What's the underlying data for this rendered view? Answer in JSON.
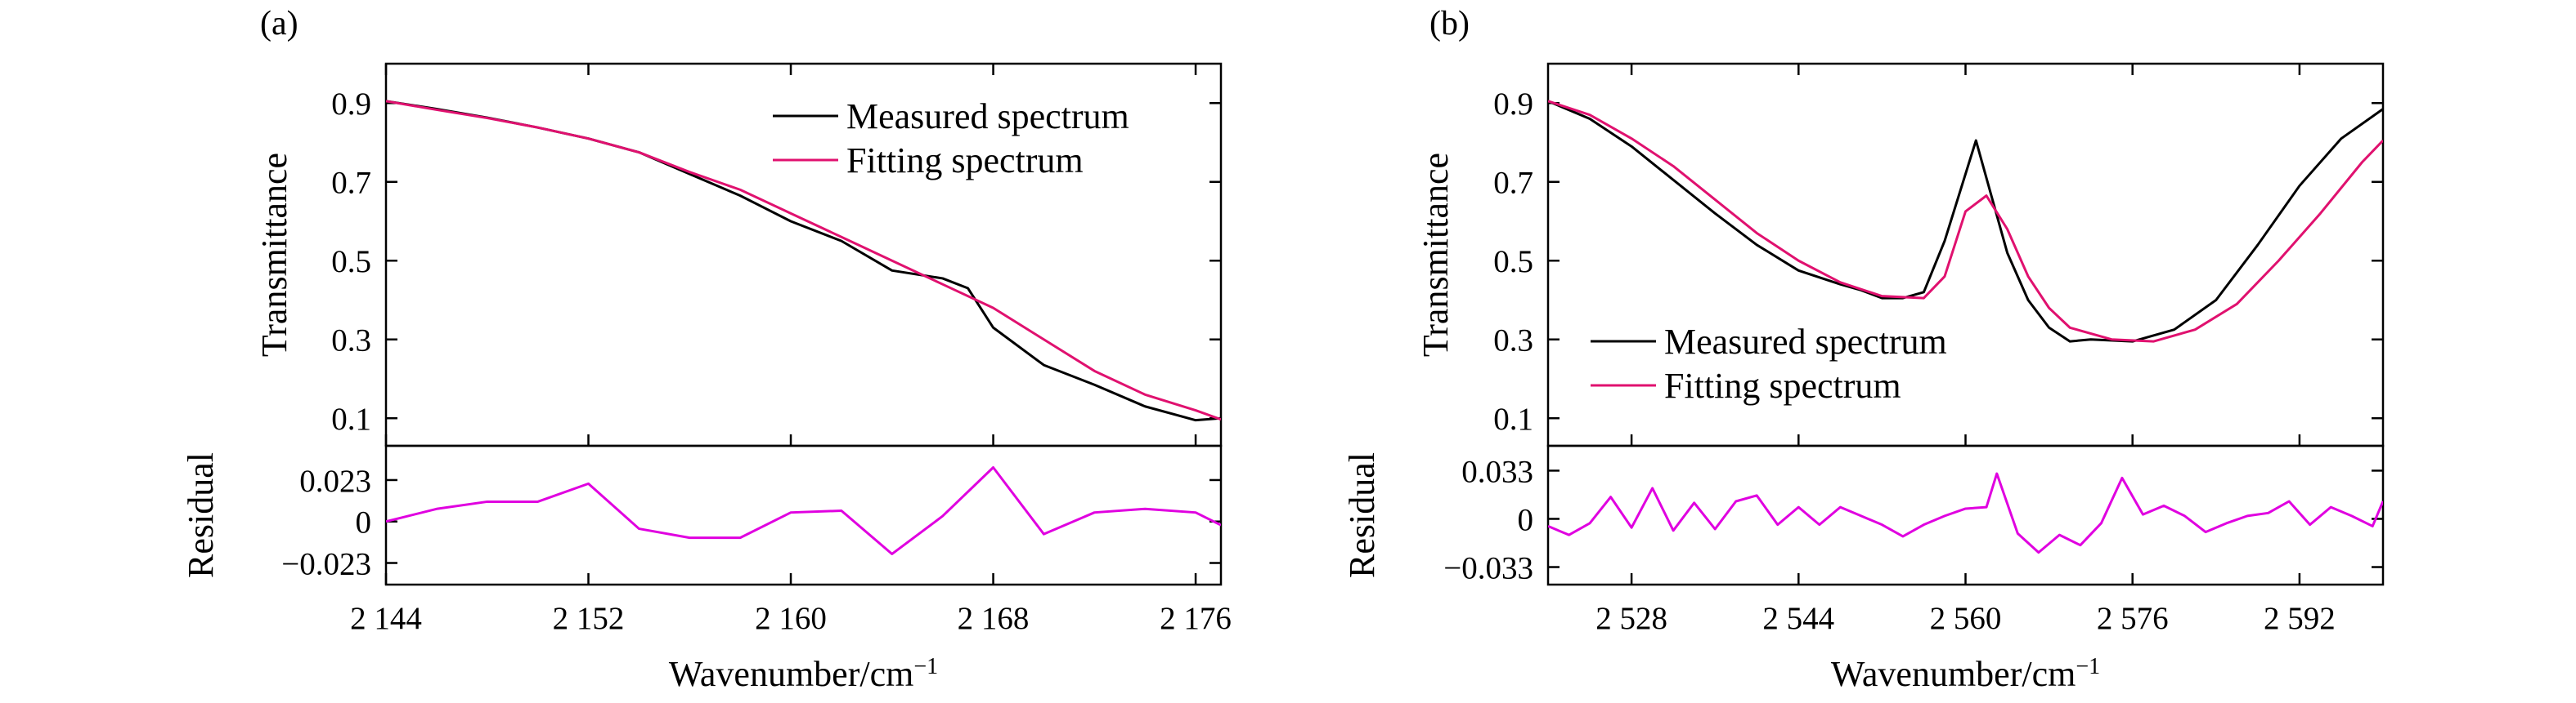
{
  "chart_data": [
    {
      "type": "line",
      "panel_label": "(a)",
      "xlabel": "Wavenumber/cm",
      "xlabel_sup": "−1",
      "xlim": [
        2144,
        2177
      ],
      "xticks": [
        2144,
        2152,
        2160,
        2168,
        2176
      ],
      "xtick_labels": [
        "2 144",
        "2 152",
        "2 160",
        "2 168",
        "2 176"
      ],
      "top": {
        "ylabel": "Transmittance",
        "ylim": [
          0.03,
          1.0
        ],
        "yticks": [
          0.1,
          0.3,
          0.5,
          0.7,
          0.9
        ],
        "ytick_labels": [
          "0.1",
          "0.3",
          "0.5",
          "0.7",
          "0.9"
        ],
        "legend_position": "top-right",
        "series": [
          {
            "name": "Measured spectrum",
            "color": "#000000",
            "points": [
              [
                2144,
                0.905
              ],
              [
                2146,
                0.885
              ],
              [
                2148,
                0.863
              ],
              [
                2150,
                0.838
              ],
              [
                2152,
                0.81
              ],
              [
                2154,
                0.775
              ],
              [
                2156,
                0.72
              ],
              [
                2158,
                0.665
              ],
              [
                2160,
                0.6
              ],
              [
                2162,
                0.55
              ],
              [
                2164,
                0.475
              ],
              [
                2166,
                0.455
              ],
              [
                2167,
                0.43
              ],
              [
                2168,
                0.33
              ],
              [
                2170,
                0.235
              ],
              [
                2172,
                0.185
              ],
              [
                2174,
                0.13
              ],
              [
                2176,
                0.095
              ],
              [
                2177,
                0.1
              ],
              [
                2177,
                0.097
              ]
            ]
          },
          {
            "name": "Fitting spectrum",
            "color": "#e0116f",
            "points": [
              [
                2144,
                0.905
              ],
              [
                2146,
                0.883
              ],
              [
                2148,
                0.862
              ],
              [
                2150,
                0.838
              ],
              [
                2152,
                0.81
              ],
              [
                2154,
                0.775
              ],
              [
                2156,
                0.725
              ],
              [
                2158,
                0.68
              ],
              [
                2160,
                0.62
              ],
              [
                2162,
                0.56
              ],
              [
                2164,
                0.5
              ],
              [
                2166,
                0.44
              ],
              [
                2168,
                0.38
              ],
              [
                2170,
                0.3
              ],
              [
                2172,
                0.22
              ],
              [
                2174,
                0.16
              ],
              [
                2176,
                0.12
              ],
              [
                2177,
                0.097
              ]
            ]
          }
        ]
      },
      "bottom": {
        "ylabel": "Residual",
        "ylim": [
          -0.035,
          0.042
        ],
        "yticks": [
          -0.023,
          0,
          0.023
        ],
        "ytick_labels": [
          "−0.023",
          "0",
          "0.023"
        ],
        "series": [
          {
            "name": "",
            "color": "#e000e0",
            "points": [
              [
                2144,
                0.0
              ],
              [
                2146,
                0.007
              ],
              [
                2148,
                0.011
              ],
              [
                2150,
                0.011
              ],
              [
                2152,
                0.021
              ],
              [
                2154,
                -0.004
              ],
              [
                2156,
                -0.009
              ],
              [
                2158,
                -0.009
              ],
              [
                2160,
                0.005
              ],
              [
                2162,
                0.006
              ],
              [
                2164,
                -0.018
              ],
              [
                2166,
                0.003
              ],
              [
                2168,
                0.03
              ],
              [
                2170,
                -0.007
              ],
              [
                2172,
                0.005
              ],
              [
                2174,
                0.007
              ],
              [
                2176,
                0.005
              ],
              [
                2177,
                -0.002
              ]
            ]
          }
        ]
      }
    },
    {
      "type": "line",
      "panel_label": "(b)",
      "xlabel": "Wavenumber/cm",
      "xlabel_sup": "−1",
      "xlim": [
        2520,
        2600
      ],
      "xticks": [
        2528,
        2544,
        2560,
        2576,
        2592
      ],
      "xtick_labels": [
        "2 528",
        "2 544",
        "2 560",
        "2 576",
        "2 592"
      ],
      "top": {
        "ylabel": "Transmittance",
        "ylim": [
          0.03,
          1.0
        ],
        "yticks": [
          0.1,
          0.3,
          0.5,
          0.7,
          0.9
        ],
        "ytick_labels": [
          "0.1",
          "0.3",
          "0.5",
          "0.7",
          "0.9"
        ],
        "legend_position": "bottom-left",
        "series": [
          {
            "name": "Measured spectrum",
            "color": "#000000",
            "points": [
              [
                2520,
                0.905
              ],
              [
                2524,
                0.86
              ],
              [
                2528,
                0.79
              ],
              [
                2532,
                0.705
              ],
              [
                2536,
                0.62
              ],
              [
                2540,
                0.54
              ],
              [
                2544,
                0.475
              ],
              [
                2548,
                0.44
              ],
              [
                2550,
                0.425
              ],
              [
                2552,
                0.405
              ],
              [
                2554,
                0.405
              ],
              [
                2556,
                0.42
              ],
              [
                2558,
                0.55
              ],
              [
                2561,
                0.805
              ],
              [
                2564,
                0.52
              ],
              [
                2566,
                0.4
              ],
              [
                2568,
                0.33
              ],
              [
                2570,
                0.295
              ],
              [
                2572,
                0.3
              ],
              [
                2576,
                0.295
              ],
              [
                2580,
                0.325
              ],
              [
                2584,
                0.4
              ],
              [
                2588,
                0.54
              ],
              [
                2592,
                0.69
              ],
              [
                2596,
                0.81
              ],
              [
                2600,
                0.885
              ]
            ]
          },
          {
            "name": "Fitting spectrum",
            "color": "#e0116f",
            "points": [
              [
                2520,
                0.905
              ],
              [
                2524,
                0.87
              ],
              [
                2528,
                0.81
              ],
              [
                2532,
                0.74
              ],
              [
                2536,
                0.655
              ],
              [
                2540,
                0.57
              ],
              [
                2544,
                0.5
              ],
              [
                2548,
                0.445
              ],
              [
                2552,
                0.41
              ],
              [
                2556,
                0.405
              ],
              [
                2558,
                0.46
              ],
              [
                2560,
                0.625
              ],
              [
                2562,
                0.665
              ],
              [
                2564,
                0.58
              ],
              [
                2566,
                0.46
              ],
              [
                2568,
                0.38
              ],
              [
                2570,
                0.33
              ],
              [
                2574,
                0.3
              ],
              [
                2578,
                0.295
              ],
              [
                2582,
                0.325
              ],
              [
                2586,
                0.39
              ],
              [
                2590,
                0.5
              ],
              [
                2594,
                0.62
              ],
              [
                2598,
                0.75
              ],
              [
                2600,
                0.805
              ]
            ]
          }
        ]
      },
      "bottom": {
        "ylabel": "Residual",
        "ylim": [
          -0.045,
          0.05
        ],
        "yticks": [
          -0.033,
          0,
          0.033
        ],
        "ytick_labels": [
          "−0.033",
          "0",
          "0.033"
        ],
        "series": [
          {
            "name": "",
            "color": "#e000e0",
            "points": [
              [
                2520,
                -0.005
              ],
              [
                2522,
                -0.011
              ],
              [
                2524,
                -0.003
              ],
              [
                2526,
                0.015
              ],
              [
                2528,
                -0.006
              ],
              [
                2530,
                0.021
              ],
              [
                2532,
                -0.008
              ],
              [
                2534,
                0.011
              ],
              [
                2536,
                -0.007
              ],
              [
                2538,
                0.012
              ],
              [
                2540,
                0.016
              ],
              [
                2542,
                -0.004
              ],
              [
                2544,
                0.008
              ],
              [
                2546,
                -0.004
              ],
              [
                2548,
                0.008
              ],
              [
                2550,
                0.002
              ],
              [
                2552,
                -0.004
              ],
              [
                2554,
                -0.012
              ],
              [
                2556,
                -0.004
              ],
              [
                2558,
                0.002
              ],
              [
                2560,
                0.007
              ],
              [
                2562,
                0.008
              ],
              [
                2563,
                0.031
              ],
              [
                2565,
                -0.01
              ],
              [
                2567,
                -0.023
              ],
              [
                2569,
                -0.011
              ],
              [
                2571,
                -0.018
              ],
              [
                2573,
                -0.003
              ],
              [
                2575,
                0.028
              ],
              [
                2577,
                0.003
              ],
              [
                2579,
                0.009
              ],
              [
                2581,
                0.002
              ],
              [
                2583,
                -0.009
              ],
              [
                2585,
                -0.003
              ],
              [
                2587,
                0.002
              ],
              [
                2589,
                0.004
              ],
              [
                2591,
                0.012
              ],
              [
                2593,
                -0.004
              ],
              [
                2595,
                0.008
              ],
              [
                2597,
                0.002
              ],
              [
                2599,
                -0.005
              ],
              [
                2600,
                0.012
              ]
            ]
          }
        ]
      }
    }
  ]
}
